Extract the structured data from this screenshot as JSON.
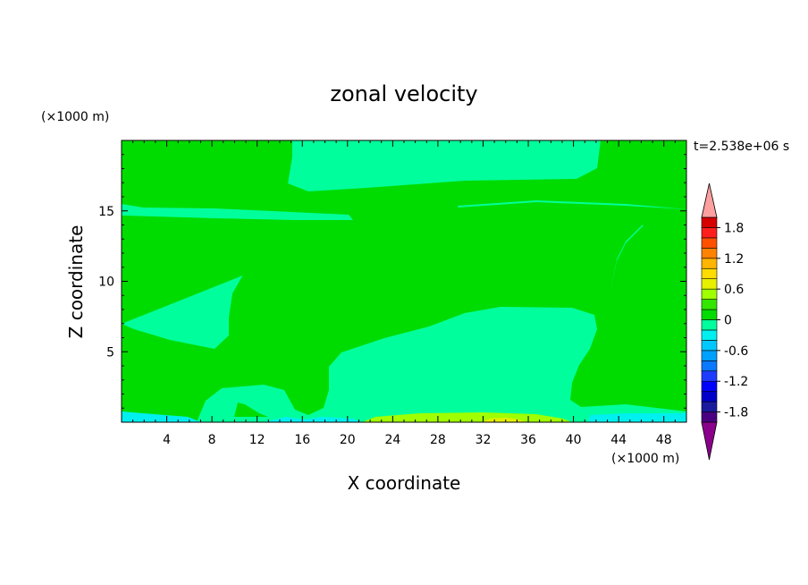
{
  "chart_data": {
    "type": "heatmap",
    "title": "zonal velocity",
    "xlabel": "X coordinate",
    "ylabel": "Z coordinate",
    "x_unit_label": "(×1000 m)",
    "y_unit_label": "(×1000 m)",
    "time_label": "t=2.538e+06 s",
    "xlim": [
      0,
      50
    ],
    "ylim": [
      0,
      20
    ],
    "x_ticks": [
      4,
      8,
      12,
      16,
      20,
      24,
      28,
      32,
      36,
      40,
      44,
      48
    ],
    "y_ticks": [
      5,
      10,
      15
    ],
    "colorbar": {
      "levels": [
        -2.0,
        -1.8,
        -1.6,
        -1.4,
        -1.2,
        -1.0,
        -0.8,
        -0.6,
        -0.4,
        -0.2,
        0.0,
        0.2,
        0.4,
        0.6,
        0.8,
        1.0,
        1.2,
        1.4,
        1.6,
        1.8,
        2.0
      ],
      "tick_labels": [
        "1.8",
        "1.2",
        "0.6",
        "0",
        "-0.6",
        "-1.2",
        "-1.8"
      ],
      "tick_values": [
        1.8,
        1.2,
        0.6,
        0.0,
        -0.6,
        -1.2,
        -1.8
      ],
      "colors_low_to_high": [
        "#4b0082",
        "#1a1a9e",
        "#0000c8",
        "#0000ff",
        "#1e3cff",
        "#0a78ff",
        "#00a0ff",
        "#00c8ff",
        "#00f0f0",
        "#00ff9c",
        "#00dc00",
        "#32e600",
        "#a0ff00",
        "#e6f000",
        "#ffdc00",
        "#ffb400",
        "#ff8200",
        "#ff5000",
        "#ff1e1e",
        "#d70000"
      ],
      "under_color": "#8b008b",
      "over_color": "#ffa0a0"
    },
    "background_level_color": "#00ff9c",
    "positive_level_color": "#00dc00"
  }
}
